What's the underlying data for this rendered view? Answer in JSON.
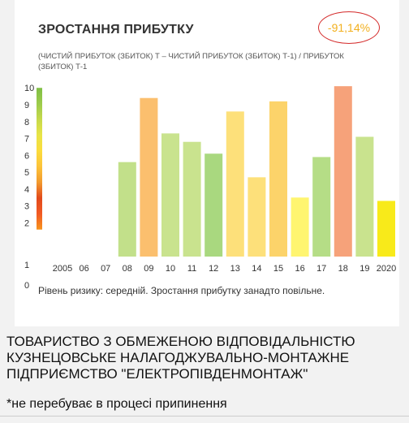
{
  "card": {
    "title": "ЗРОСТАННЯ ПРИБУТКУ",
    "badge": "-91,14%",
    "subtitle": "(ЧИСТИЙ ПРИБУТОК (ЗБИТОК) Т – ЧИСТИЙ ПРИБУТОК (ЗБИТОК) Т-1) / ПРИБУТОК (ЗБИТОК) Т-1",
    "note": "Рівень ризику: середній. Зростання прибутку занадто повільне."
  },
  "company_name": "ТОВАРИСТВО З ОБМЕЖЕНОЮ ВІДПОВІДАЛЬНІСТЮ КУЗНЕЦОВСЬКЕ НАЛАГОДЖУВАЛЬНО-МОНТАЖНЕ ПІДПРИЄМСТВО \"ЕЛЕКТРОПІВДЕНМОНТАЖ\"",
  "footnote": "*не перебуває в процесі припинення",
  "chart_data": {
    "type": "bar",
    "categories": [
      "2005",
      "06",
      "07",
      "08",
      "09",
      "10",
      "11",
      "12",
      "13",
      "14",
      "15",
      "16",
      "17",
      "18",
      "19",
      "2020"
    ],
    "values": [
      null,
      null,
      null,
      5.6,
      9.4,
      7.3,
      6.8,
      6.1,
      8.6,
      4.7,
      9.2,
      3.5,
      5.9,
      10.1,
      7.1,
      3.3
    ],
    "colors": [
      null,
      null,
      null,
      "#c2e08a",
      "#fbbf6e",
      "#c9e38e",
      "#c9e38e",
      "#a9d87f",
      "#fde07a",
      "#fde07a",
      "#fcd36a",
      "#fff570",
      "#b5dd86",
      "#f6a27a",
      "#c9e38e",
      "#f8ea1a"
    ],
    "yticks": [
      "0",
      "1",
      "2",
      "3",
      "4",
      "5",
      "6",
      "7",
      "8",
      "9",
      "10"
    ],
    "ylim": [
      0,
      10.3
    ],
    "risk_scale_colors": [
      "#f7941d",
      "#f15a24",
      "#e24a1c",
      "#f29a2e",
      "#fcc33a",
      "#fbdc3c",
      "#e8e447",
      "#c6d94b",
      "#9ccb4c",
      "#7fbf45"
    ]
  }
}
